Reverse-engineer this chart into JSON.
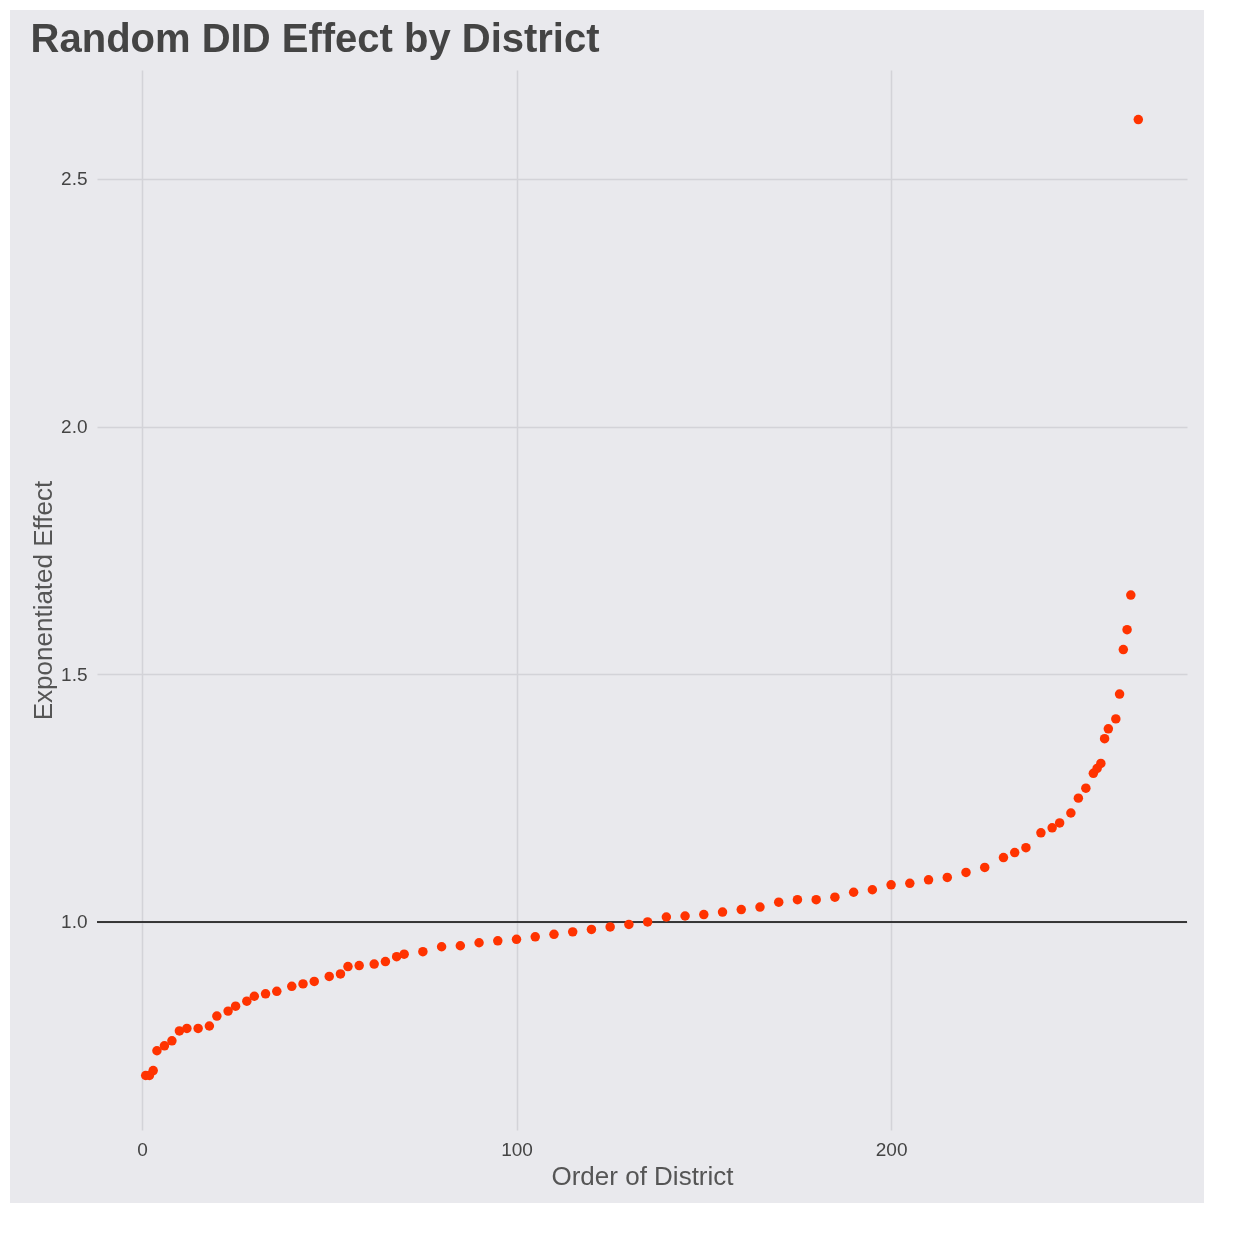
{
  "chart_data": {
    "type": "scatter",
    "title": "Random DID Effect by District",
    "xlabel": "Order of District",
    "ylabel": "Exponentiated Effect",
    "x": [
      1,
      2,
      3,
      4,
      6,
      8,
      10,
      12,
      15,
      18,
      20,
      23,
      25,
      28,
      30,
      33,
      36,
      40,
      43,
      46,
      50,
      53,
      55,
      58,
      62,
      65,
      68,
      70,
      75,
      80,
      85,
      90,
      95,
      100,
      105,
      110,
      115,
      120,
      125,
      130,
      135,
      140,
      145,
      150,
      155,
      160,
      165,
      170,
      175,
      180,
      185,
      190,
      195,
      200,
      205,
      210,
      215,
      220,
      225,
      230,
      233,
      236,
      240,
      243,
      245,
      248,
      250,
      252,
      254,
      255,
      256,
      257,
      258,
      260,
      261,
      262,
      263,
      264,
      266
    ],
    "series": [
      {
        "color": "#ff3300",
        "values": [
          0.69,
          0.69,
          0.7,
          0.74,
          0.75,
          0.76,
          0.78,
          0.785,
          0.785,
          0.79,
          0.81,
          0.82,
          0.83,
          0.84,
          0.85,
          0.855,
          0.86,
          0.87,
          0.875,
          0.88,
          0.89,
          0.895,
          0.91,
          0.912,
          0.915,
          0.92,
          0.93,
          0.935,
          0.94,
          0.95,
          0.952,
          0.958,
          0.962,
          0.965,
          0.97,
          0.975,
          0.98,
          0.985,
          0.99,
          0.995,
          1.0,
          1.01,
          1.012,
          1.015,
          1.02,
          1.025,
          1.03,
          1.04,
          1.045,
          1.045,
          1.05,
          1.06,
          1.065,
          1.075,
          1.078,
          1.085,
          1.09,
          1.1,
          1.11,
          1.13,
          1.14,
          1.15,
          1.18,
          1.19,
          1.2,
          1.22,
          1.25,
          1.27,
          1.3,
          1.31,
          1.32,
          1.37,
          1.39,
          1.41,
          1.46,
          1.55,
          1.59,
          1.66,
          2.62
        ]
      }
    ],
    "xlim": [
      -12,
      279
    ],
    "ylim": [
      0.58,
      2.72
    ],
    "xticks": [
      0,
      100,
      200
    ],
    "yticks": [
      {
        "value": 1,
        "label": "1.0"
      },
      1.5,
      {
        "value": 2,
        "label": "2.0"
      },
      2.5
    ],
    "ref_lines": [
      {
        "axis": "y",
        "value": 1,
        "color": "#000000"
      }
    ],
    "grid": true,
    "marker": "circle"
  }
}
